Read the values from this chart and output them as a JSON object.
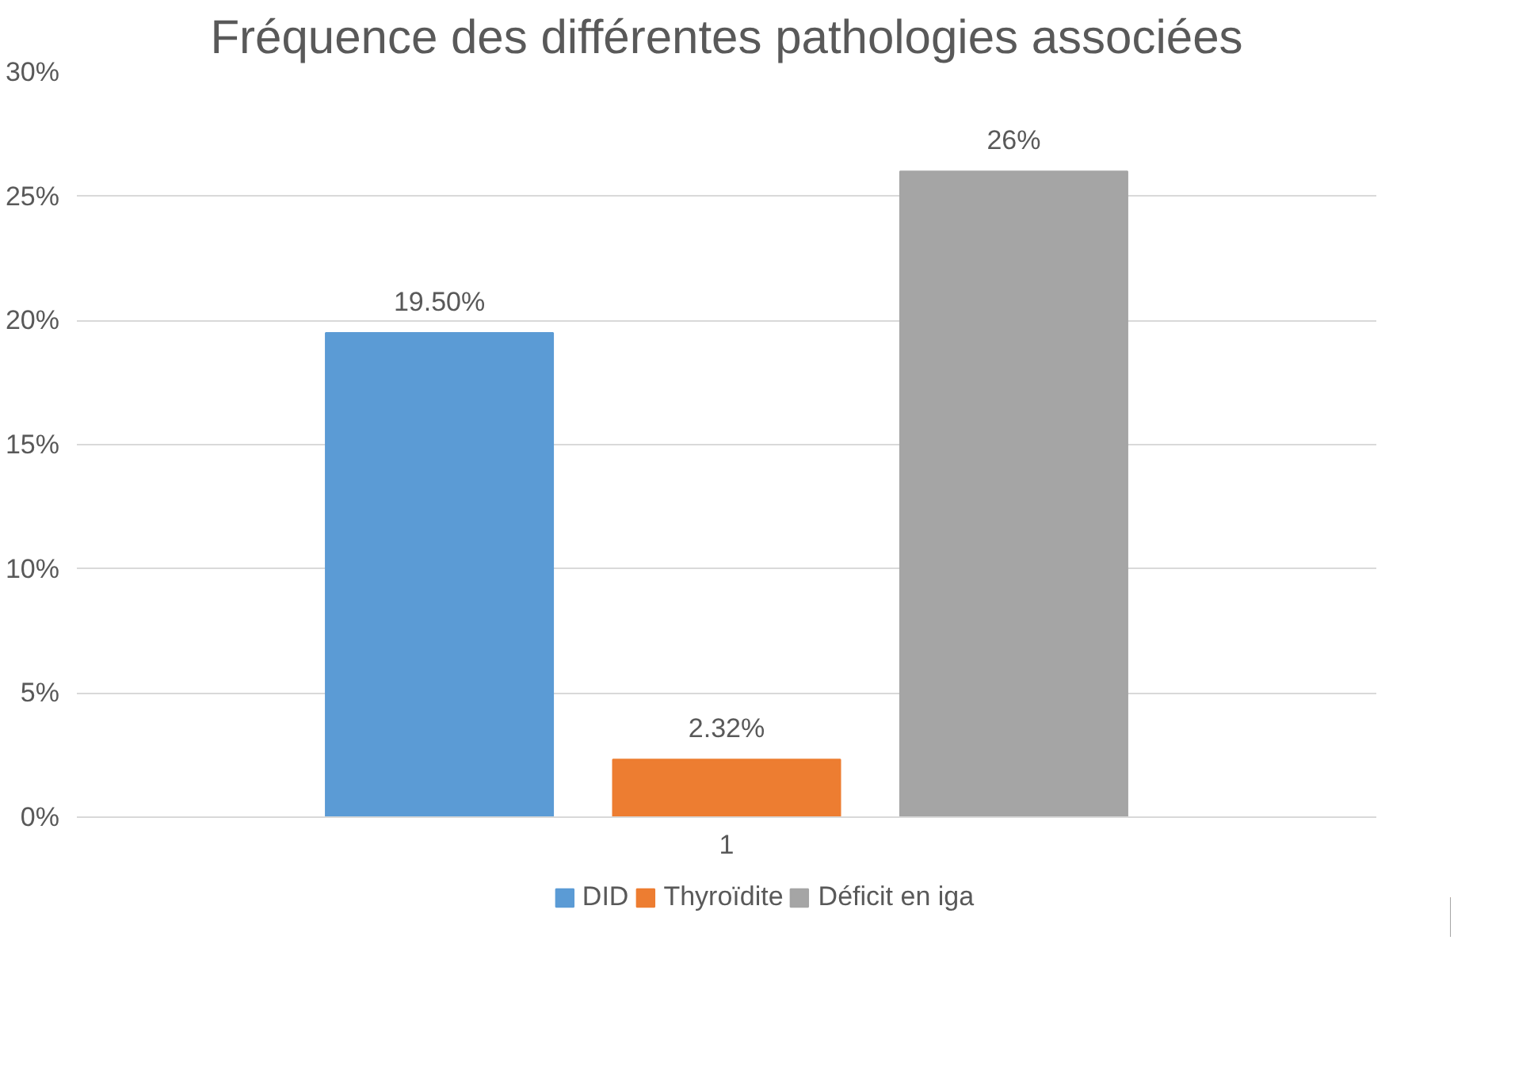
{
  "chart_data": {
    "type": "bar",
    "title": "Fréquence des différentes pathologies associées",
    "categories": [
      "1"
    ],
    "series": [
      {
        "name": "DID",
        "color": "#5b9bd5",
        "values": [
          19.5
        ],
        "value_labels": [
          "19.50%"
        ]
      },
      {
        "name": "Thyroïdite",
        "color": "#ed7d31",
        "values": [
          2.32
        ],
        "value_labels": [
          "2.32%"
        ]
      },
      {
        "name": "Déficit en iga",
        "color": "#a5a5a5",
        "values": [
          26
        ],
        "value_labels": [
          "26%"
        ]
      }
    ],
    "ylim": [
      0,
      30
    ],
    "yticks": [
      {
        "value": 0,
        "label": "0%"
      },
      {
        "value": 5,
        "label": "5%"
      },
      {
        "value": 10,
        "label": "10%"
      },
      {
        "value": 15,
        "label": "15%"
      },
      {
        "value": 20,
        "label": "20%"
      },
      {
        "value": 25,
        "label": "25%"
      },
      {
        "value": 30,
        "label": "30%"
      }
    ],
    "grid": "y",
    "legend": "bottom"
  }
}
